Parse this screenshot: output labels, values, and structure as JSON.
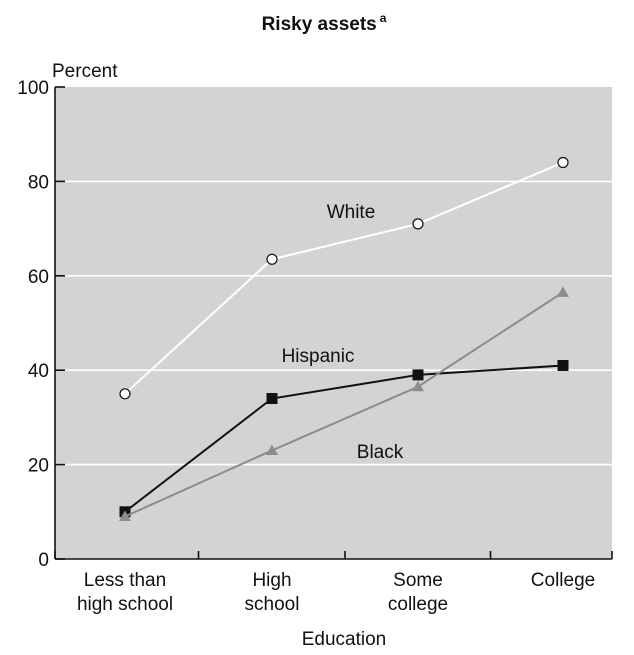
{
  "chart_data": {
    "type": "line",
    "title": "Risky assets",
    "title_superscript": "a",
    "ylabel": "Percent",
    "xlabel": "Education",
    "ylim": [
      0,
      100
    ],
    "yticks": [
      0,
      20,
      40,
      60,
      80,
      100
    ],
    "grid": true,
    "categories": [
      [
        "Less than",
        "high school"
      ],
      [
        "High",
        "school"
      ],
      [
        "Some",
        "college"
      ],
      [
        "College"
      ]
    ],
    "series": [
      {
        "name": "White",
        "marker": "circle-open",
        "color": "#ffffff",
        "values": [
          35,
          63.5,
          71,
          84
        ]
      },
      {
        "name": "Hispanic",
        "marker": "square-filled",
        "color": "#111111",
        "values": [
          10,
          34,
          39,
          41
        ]
      },
      {
        "name": "Black",
        "marker": "triangle-filled",
        "color": "#8c8c8c",
        "values": [
          9,
          23,
          36.5,
          56.5
        ]
      }
    ],
    "plot_background": "#d3d3d3"
  }
}
